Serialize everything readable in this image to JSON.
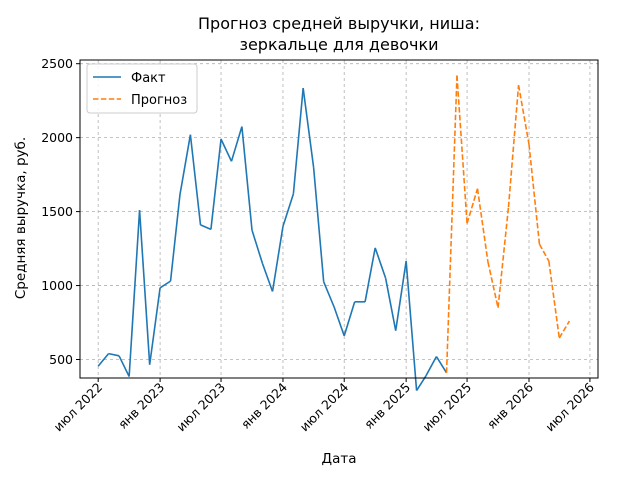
{
  "chart_data": {
    "type": "line",
    "title": [
      "Прогноз средней выручки, ниша:",
      "зеркальце для девочки"
    ],
    "xlabel": "Дата",
    "ylabel": "Средняя выручка, руб.",
    "x_ticks": [
      {
        "date": "2022-07-01",
        "label": "июл 2022"
      },
      {
        "date": "2023-01-01",
        "label": "янв 2023"
      },
      {
        "date": "2023-07-01",
        "label": "июл 2023"
      },
      {
        "date": "2024-01-01",
        "label": "янв 2024"
      },
      {
        "date": "2024-07-01",
        "label": "июл 2024"
      },
      {
        "date": "2025-01-01",
        "label": "янв 2025"
      },
      {
        "date": "2025-07-01",
        "label": "июл 2025"
      },
      {
        "date": "2026-01-01",
        "label": "янв 2026"
      },
      {
        "date": "2026-07-01",
        "label": "июл 2026"
      }
    ],
    "y_ticks": [
      500,
      1000,
      1500,
      2000,
      2500
    ],
    "xlim": [
      "2022-05-08",
      "2026-07-25"
    ],
    "ylim": [
      375,
      2525
    ],
    "grid": true,
    "legend_position": "top-left",
    "series": [
      {
        "name": "Факт",
        "color": "#1f77b4",
        "dash": "solid",
        "points": [
          [
            "2022-07-01",
            455
          ],
          [
            "2022-08-01",
            540
          ],
          [
            "2022-09-01",
            525
          ],
          [
            "2022-10-01",
            385
          ],
          [
            "2022-11-01",
            1510
          ],
          [
            "2022-12-01",
            465
          ],
          [
            "2023-01-01",
            985
          ],
          [
            "2023-02-01",
            1030
          ],
          [
            "2023-03-01",
            1615
          ],
          [
            "2023-04-01",
            2020
          ],
          [
            "2023-05-01",
            1410
          ],
          [
            "2023-06-01",
            1380
          ],
          [
            "2023-07-01",
            1990
          ],
          [
            "2023-08-01",
            1840
          ],
          [
            "2023-09-01",
            2075
          ],
          [
            "2023-10-01",
            1375
          ],
          [
            "2023-11-01",
            1150
          ],
          [
            "2023-12-01",
            960
          ],
          [
            "2024-01-01",
            1400
          ],
          [
            "2024-02-01",
            1620
          ],
          [
            "2024-03-01",
            2335
          ],
          [
            "2024-04-01",
            1800
          ],
          [
            "2024-05-01",
            1025
          ],
          [
            "2024-06-01",
            855
          ],
          [
            "2024-07-01",
            660
          ],
          [
            "2024-08-01",
            890
          ],
          [
            "2024-09-01",
            890
          ],
          [
            "2024-10-01",
            1255
          ],
          [
            "2024-11-01",
            1050
          ],
          [
            "2024-12-01",
            695
          ],
          [
            "2025-01-01",
            1165
          ],
          [
            "2025-02-01",
            290
          ],
          [
            "2025-03-01",
            390
          ],
          [
            "2025-04-01",
            520
          ],
          [
            "2025-05-01",
            410
          ]
        ]
      },
      {
        "name": "Прогноз",
        "color": "#ff7f0e",
        "dash": "dashed",
        "points": [
          [
            "2025-05-01",
            410
          ],
          [
            "2025-06-01",
            2420
          ],
          [
            "2025-07-01",
            1420
          ],
          [
            "2025-08-01",
            1655
          ],
          [
            "2025-09-01",
            1160
          ],
          [
            "2025-10-01",
            850
          ],
          [
            "2025-11-01",
            1530
          ],
          [
            "2025-12-01",
            2355
          ],
          [
            "2026-01-01",
            1955
          ],
          [
            "2026-02-01",
            1280
          ],
          [
            "2026-03-01",
            1165
          ],
          [
            "2026-04-01",
            645
          ],
          [
            "2026-05-01",
            760
          ]
        ]
      }
    ]
  }
}
